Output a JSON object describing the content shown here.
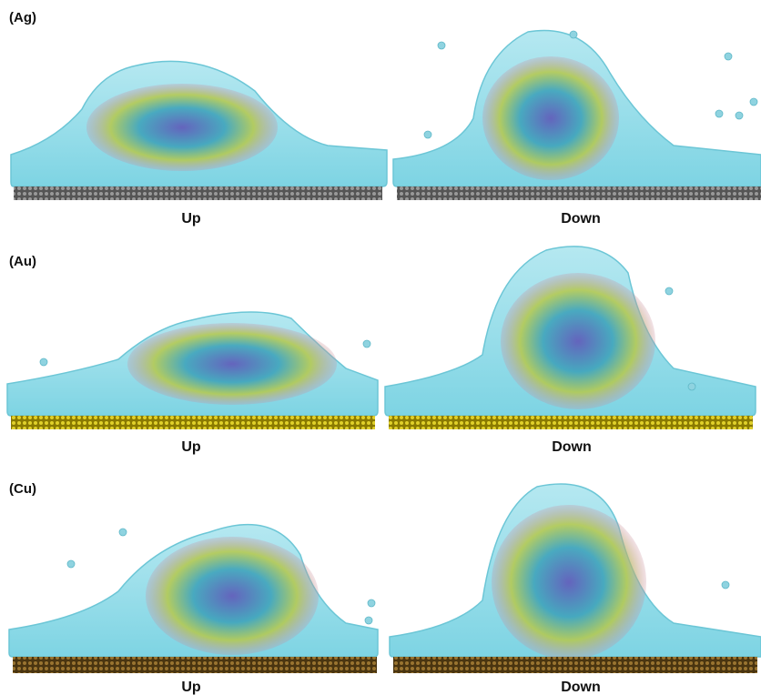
{
  "panels": [
    {
      "label": "(Ag)",
      "images": [
        {
          "caption": "Up"
        },
        {
          "caption": "Down"
        }
      ]
    },
    {
      "label": "(Au)",
      "images": [
        {
          "caption": "Up"
        },
        {
          "caption": "Down"
        }
      ]
    },
    {
      "label": "(Cu)",
      "images": [
        {
          "caption": "Up"
        },
        {
          "caption": "Down"
        }
      ]
    }
  ]
}
